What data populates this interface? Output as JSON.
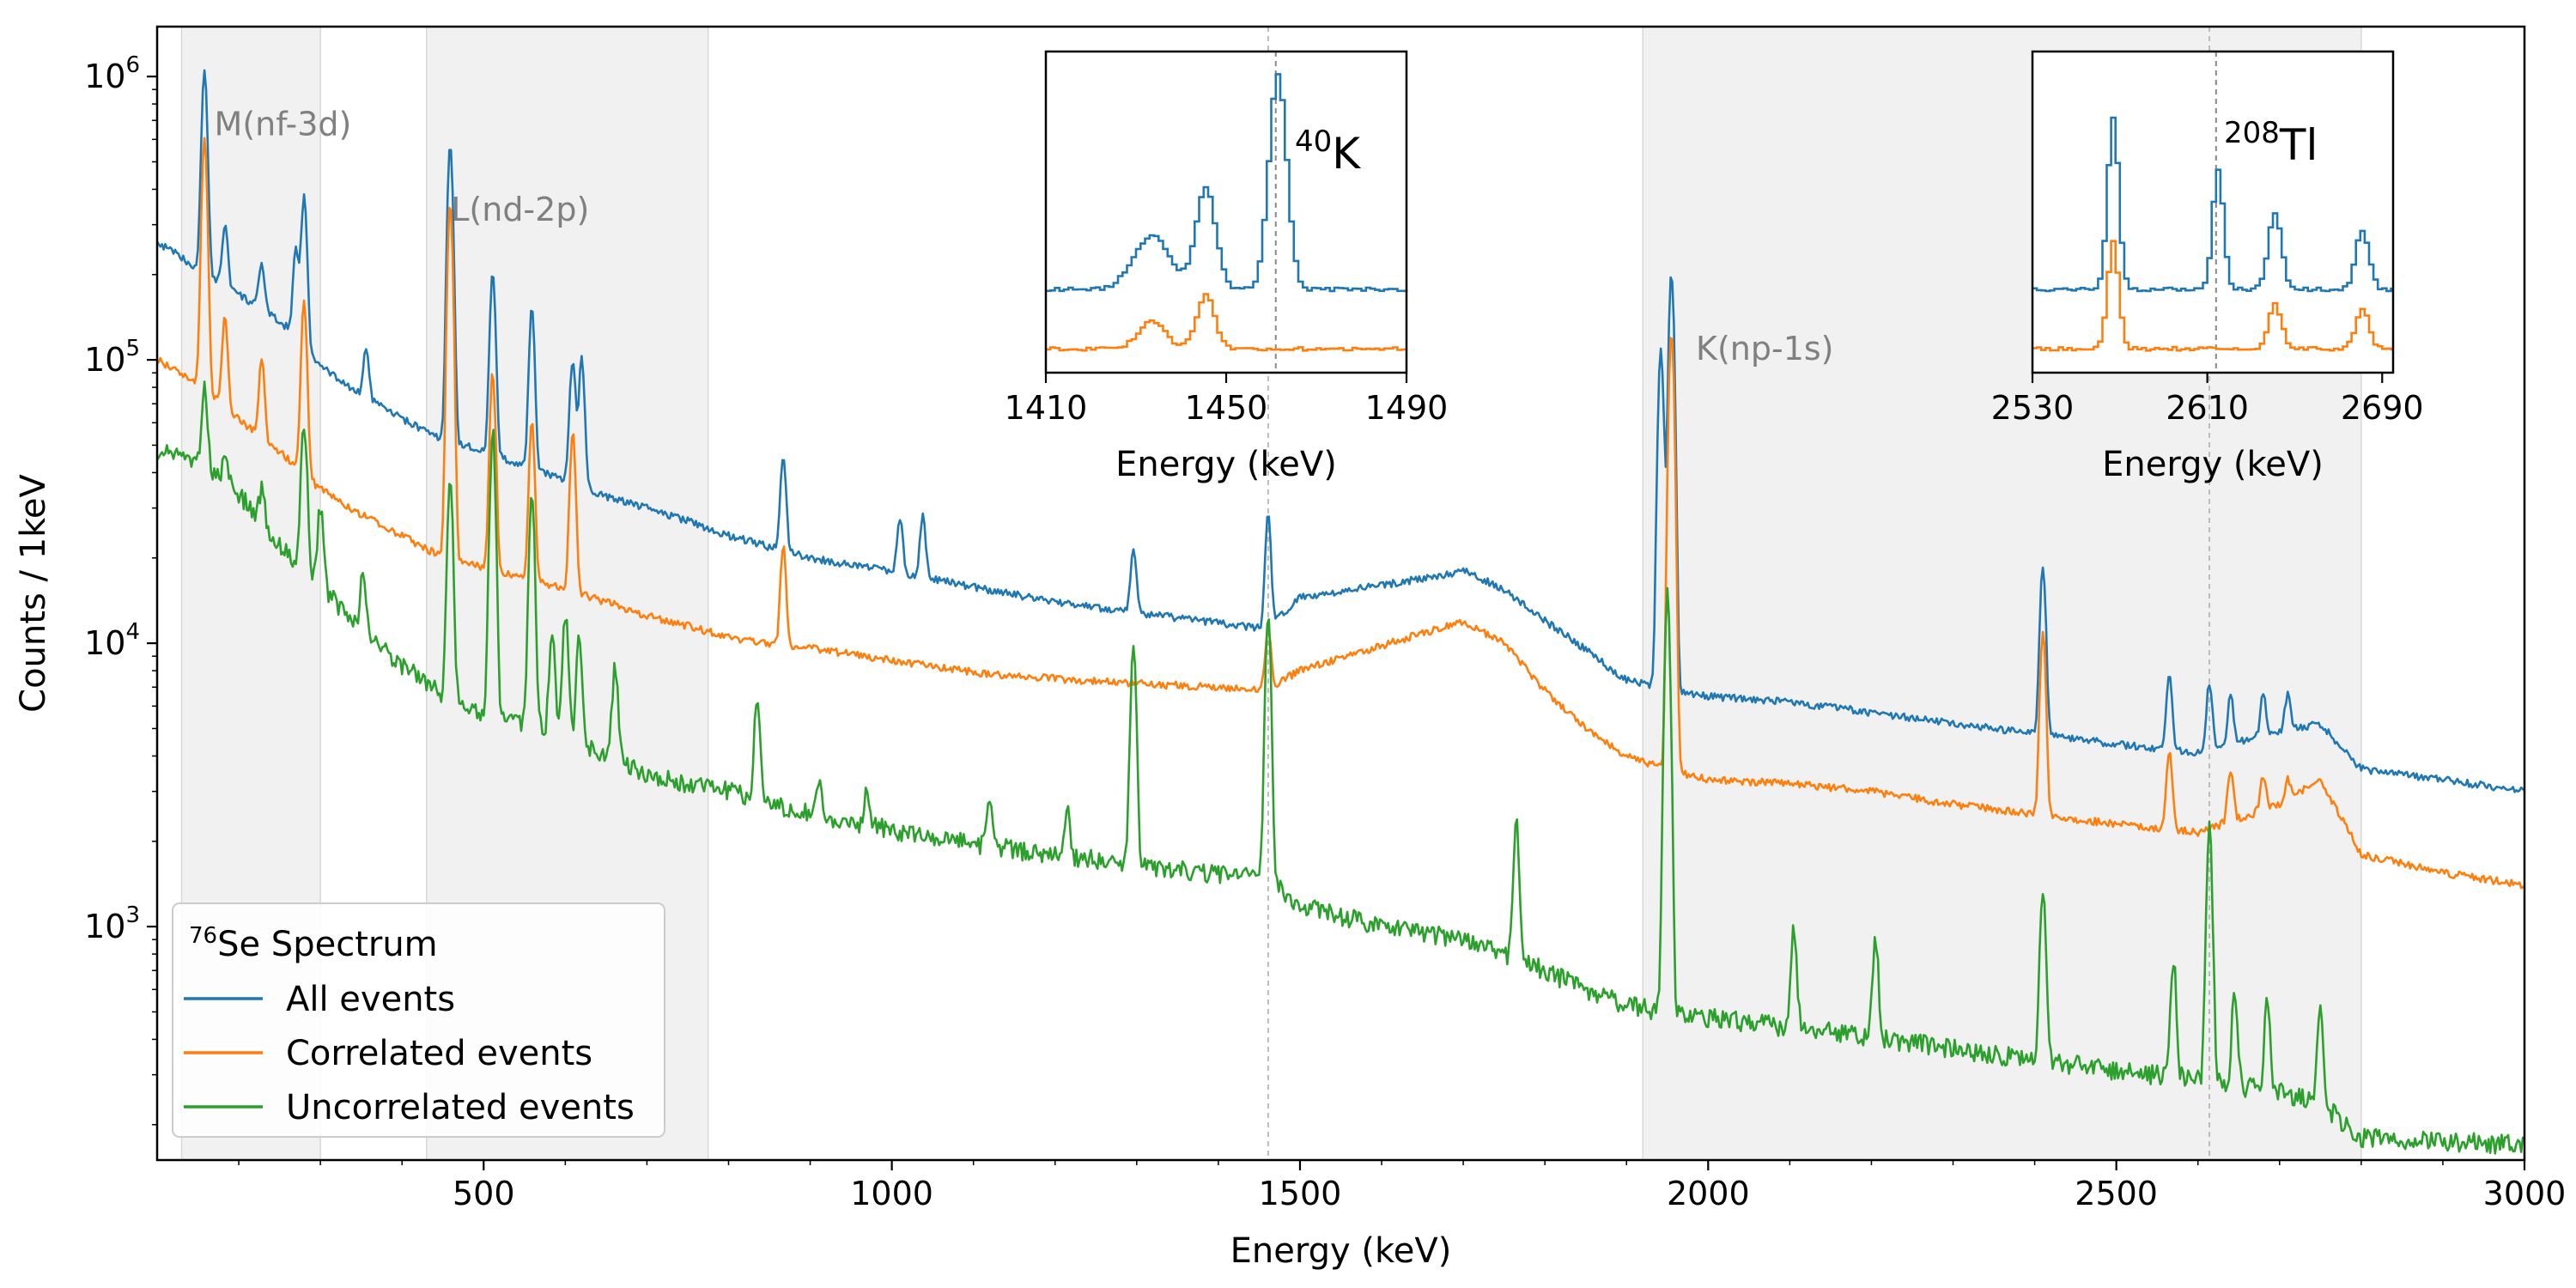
{
  "chart_data": [
    {
      "type": "line",
      "xscale": "linear",
      "yscale": "log",
      "xlabel": "Energy (keV)",
      "ylabel": "Counts / 1keV",
      "xlim": [
        100,
        3000
      ],
      "ylim": [
        150,
        1500000
      ],
      "x_ticks": [
        500,
        1000,
        1500,
        2000,
        2500,
        3000
      ],
      "x_tick_labels": [
        "500",
        "1000",
        "1500",
        "2000",
        "2500",
        "3000"
      ],
      "y_ticks": [
        1000,
        10000,
        100000,
        1000000
      ],
      "y_tick_labels": [
        {
          "base": "10",
          "exp": "3"
        },
        {
          "base": "10",
          "exp": "4"
        },
        {
          "base": "10",
          "exp": "5"
        },
        {
          "base": "10",
          "exp": "6"
        }
      ],
      "shaded_regions": [
        {
          "x0": 130,
          "x1": 300,
          "label": "M(nf-3d)",
          "label_x": 170,
          "label_y": 620000
        },
        {
          "x0": 430,
          "x1": 775,
          "label": "L(nd-2p)",
          "label_x": 460,
          "label_y": 310000
        },
        {
          "x0": 1920,
          "x1": 2800,
          "label": "K(np-1s)",
          "label_x": 1985,
          "label_y": 100000
        }
      ],
      "reference_lines": [
        1461,
        2614
      ],
      "legend": {
        "title_base": "Se Spectrum",
        "title_sup": "76",
        "location": "lower-left",
        "entries": [
          "All events",
          "Correlated events",
          "Uncorrelated events"
        ]
      },
      "series": [
        {
          "name": "All events",
          "color": "#1f77b4",
          "x": [
            100,
            130,
            150,
            180,
            200,
            230,
            260,
            300,
            350,
            400,
            450,
            500,
            550,
            600,
            650,
            700,
            750,
            800,
            860,
            900,
            1000,
            1100,
            1200,
            1300,
            1400,
            1460,
            1500,
            1600,
            1700,
            1750,
            1800,
            1850,
            1900,
            1950,
            2000,
            2100,
            2200,
            2300,
            2400,
            2500,
            2600,
            2700,
            2750,
            2800,
            2900,
            3000
          ],
          "y": [
            260000,
            230000,
            210000,
            185000,
            170000,
            150000,
            130000,
            95000,
            75000,
            62000,
            52000,
            48000,
            42000,
            38000,
            33000,
            30000,
            27000,
            24000,
            21500,
            20000,
            18000,
            15800,
            14000,
            12800,
            11800,
            11200,
            14500,
            16000,
            18000,
            15500,
            12000,
            9500,
            7400,
            6900,
            6500,
            6200,
            5700,
            5200,
            4800,
            4400,
            4100,
            4900,
            5200,
            3600,
            3300,
            3000
          ],
          "peaks": [
            {
              "x": 158,
              "y": 1050000
            },
            {
              "x": 183,
              "y": 300000
            },
            {
              "x": 228,
              "y": 220000
            },
            {
              "x": 270,
              "y": 250000
            },
            {
              "x": 280,
              "y": 380000
            },
            {
              "x": 356,
              "y": 110000
            },
            {
              "x": 459,
              "y": 580000
            },
            {
              "x": 511,
              "y": 200000
            },
            {
              "x": 559,
              "y": 150000
            },
            {
              "x": 609,
              "y": 100000
            },
            {
              "x": 620,
              "y": 100000
            },
            {
              "x": 867,
              "y": 45000
            },
            {
              "x": 1010,
              "y": 28000
            },
            {
              "x": 1038,
              "y": 28000
            },
            {
              "x": 1296,
              "y": 22000
            },
            {
              "x": 1461,
              "y": 28000
            },
            {
              "x": 1942,
              "y": 110000
            },
            {
              "x": 1955,
              "y": 200000
            },
            {
              "x": 2410,
              "y": 19000
            },
            {
              "x": 2565,
              "y": 7800
            },
            {
              "x": 2614,
              "y": 7300
            },
            {
              "x": 2640,
              "y": 6600
            },
            {
              "x": 2680,
              "y": 6600
            },
            {
              "x": 2710,
              "y": 6600
            }
          ]
        },
        {
          "name": "Correlated events",
          "color": "#ff7f0e",
          "x": [
            100,
            130,
            150,
            180,
            200,
            230,
            260,
            300,
            350,
            400,
            450,
            500,
            550,
            600,
            650,
            700,
            750,
            800,
            860,
            900,
            1000,
            1100,
            1200,
            1300,
            1400,
            1460,
            1500,
            1600,
            1700,
            1750,
            1800,
            1850,
            1900,
            1950,
            2000,
            2100,
            2200,
            2300,
            2400,
            2500,
            2600,
            2700,
            2750,
            2800,
            2900,
            3000
          ],
          "y": [
            100000,
            90000,
            82000,
            70000,
            62000,
            52000,
            45000,
            35000,
            28500,
            24000,
            20000,
            18500,
            17000,
            15500,
            14000,
            12500,
            11500,
            10500,
            9800,
            9600,
            8700,
            7900,
            7500,
            7200,
            7000,
            6900,
            8000,
            9800,
            12000,
            10000,
            6800,
            5000,
            4000,
            3600,
            3300,
            3200,
            3000,
            2700,
            2500,
            2300,
            2150,
            2700,
            3300,
            1800,
            1550,
            1400
          ],
          "peaks": [
            {
              "x": 158,
              "y": 600000
            },
            {
              "x": 183,
              "y": 140000
            },
            {
              "x": 228,
              "y": 100000
            },
            {
              "x": 280,
              "y": 160000
            },
            {
              "x": 459,
              "y": 360000
            },
            {
              "x": 511,
              "y": 90000
            },
            {
              "x": 559,
              "y": 60000
            },
            {
              "x": 609,
              "y": 55000
            },
            {
              "x": 867,
              "y": 22000
            },
            {
              "x": 1461,
              "y": 11500
            },
            {
              "x": 1955,
              "y": 125000
            },
            {
              "x": 2410,
              "y": 11000
            },
            {
              "x": 2565,
              "y": 4200
            },
            {
              "x": 2640,
              "y": 3600
            },
            {
              "x": 2680,
              "y": 3400
            },
            {
              "x": 2710,
              "y": 3300
            }
          ]
        },
        {
          "name": "Uncorrelated events",
          "color": "#2ca02c",
          "x": [
            100,
            130,
            150,
            180,
            200,
            230,
            260,
            300,
            350,
            400,
            450,
            500,
            550,
            600,
            650,
            700,
            750,
            800,
            860,
            900,
            1000,
            1100,
            1200,
            1300,
            1400,
            1460,
            1500,
            1600,
            1700,
            1750,
            1800,
            1850,
            1900,
            1950,
            2000,
            2100,
            2200,
            2300,
            2400,
            2500,
            2600,
            2700,
            2750,
            2800,
            2900,
            3000
          ],
          "y": [
            48000,
            45000,
            42000,
            38000,
            34000,
            26000,
            21000,
            16000,
            11000,
            8400,
            6500,
            5700,
            5200,
            4700,
            4000,
            3500,
            3200,
            3000,
            2700,
            2500,
            2200,
            1950,
            1800,
            1650,
            1530,
            1480,
            1200,
            1000,
            900,
            800,
            700,
            600,
            530,
            500,
            480,
            440,
            410,
            370,
            340,
            310,
            290,
            260,
            240,
            180,
            175,
            170
          ],
          "peaks": [
            {
              "x": 158,
              "y": 80000
            },
            {
              "x": 183,
              "y": 45000
            },
            {
              "x": 228,
              "y": 35000
            },
            {
              "x": 280,
              "y": 60000
            },
            {
              "x": 300,
              "y": 30000
            },
            {
              "x": 352,
              "y": 18000
            },
            {
              "x": 459,
              "y": 36000
            },
            {
              "x": 511,
              "y": 55000
            },
            {
              "x": 559,
              "y": 35000
            },
            {
              "x": 584,
              "y": 11000
            },
            {
              "x": 600,
              "y": 13000
            },
            {
              "x": 617,
              "y": 11000
            },
            {
              "x": 661,
              "y": 8500
            },
            {
              "x": 835,
              "y": 6200
            },
            {
              "x": 911,
              "y": 3200
            },
            {
              "x": 969,
              "y": 3000
            },
            {
              "x": 1120,
              "y": 2800
            },
            {
              "x": 1215,
              "y": 2500
            },
            {
              "x": 1296,
              "y": 9500
            },
            {
              "x": 1461,
              "y": 12000
            },
            {
              "x": 1765,
              "y": 2300
            },
            {
              "x": 1950,
              "y": 15000
            },
            {
              "x": 2105,
              "y": 1000
            },
            {
              "x": 2205,
              "y": 900
            },
            {
              "x": 2410,
              "y": 1300
            },
            {
              "x": 2570,
              "y": 750
            },
            {
              "x": 2614,
              "y": 2200
            },
            {
              "x": 2645,
              "y": 600
            },
            {
              "x": 2685,
              "y": 550
            },
            {
              "x": 2750,
              "y": 540
            }
          ]
        }
      ]
    },
    {
      "type": "line",
      "title": "K",
      "title_sup": "40",
      "xlabel": "Energy (keV)",
      "xlim": [
        1410,
        1490
      ],
      "x_ticks": [
        1410,
        1450,
        1490
      ],
      "x_tick_labels": [
        "1410",
        "1450",
        "1490"
      ],
      "reference_line": 1461,
      "series": [
        {
          "name": "All events",
          "color": "#1f77b4",
          "baseline": 1.0,
          "peaks": [
            {
              "x": 1433,
              "h": 0.9,
              "w": 4
            },
            {
              "x": 1445,
              "h": 1.7,
              "w": 2.2
            },
            {
              "x": 1461,
              "h": 3.6,
              "w": 2
            }
          ]
        },
        {
          "name": "Correlated events",
          "color": "#ff7f0e",
          "baseline": 0.0,
          "peaks": [
            {
              "x": 1433,
              "h": 0.45,
              "w": 3
            },
            {
              "x": 1445,
              "h": 0.9,
              "w": 2
            }
          ]
        }
      ]
    },
    {
      "type": "line",
      "title": "Tl",
      "title_sup": "208",
      "xlabel": "Energy (keV)",
      "xlim": [
        2530,
        2695
      ],
      "x_ticks": [
        2530,
        2610,
        2690
      ],
      "x_tick_labels": [
        "2530",
        "2610",
        "2690"
      ],
      "reference_line": 2614,
      "series": [
        {
          "name": "All events",
          "color": "#1f77b4",
          "baseline": 1.0,
          "peaks": [
            {
              "x": 2566,
              "h": 2.9,
              "w": 2.5
            },
            {
              "x": 2614,
              "h": 2.0,
              "w": 2.5
            },
            {
              "x": 2640,
              "h": 1.3,
              "w": 3
            },
            {
              "x": 2680,
              "h": 1.0,
              "w": 3
            }
          ]
        },
        {
          "name": "Correlated events",
          "color": "#ff7f0e",
          "baseline": 0.0,
          "peaks": [
            {
              "x": 2566,
              "h": 1.8,
              "w": 2.5
            },
            {
              "x": 2640,
              "h": 0.75,
              "w": 3
            },
            {
              "x": 2680,
              "h": 0.7,
              "w": 3
            }
          ]
        }
      ]
    }
  ]
}
